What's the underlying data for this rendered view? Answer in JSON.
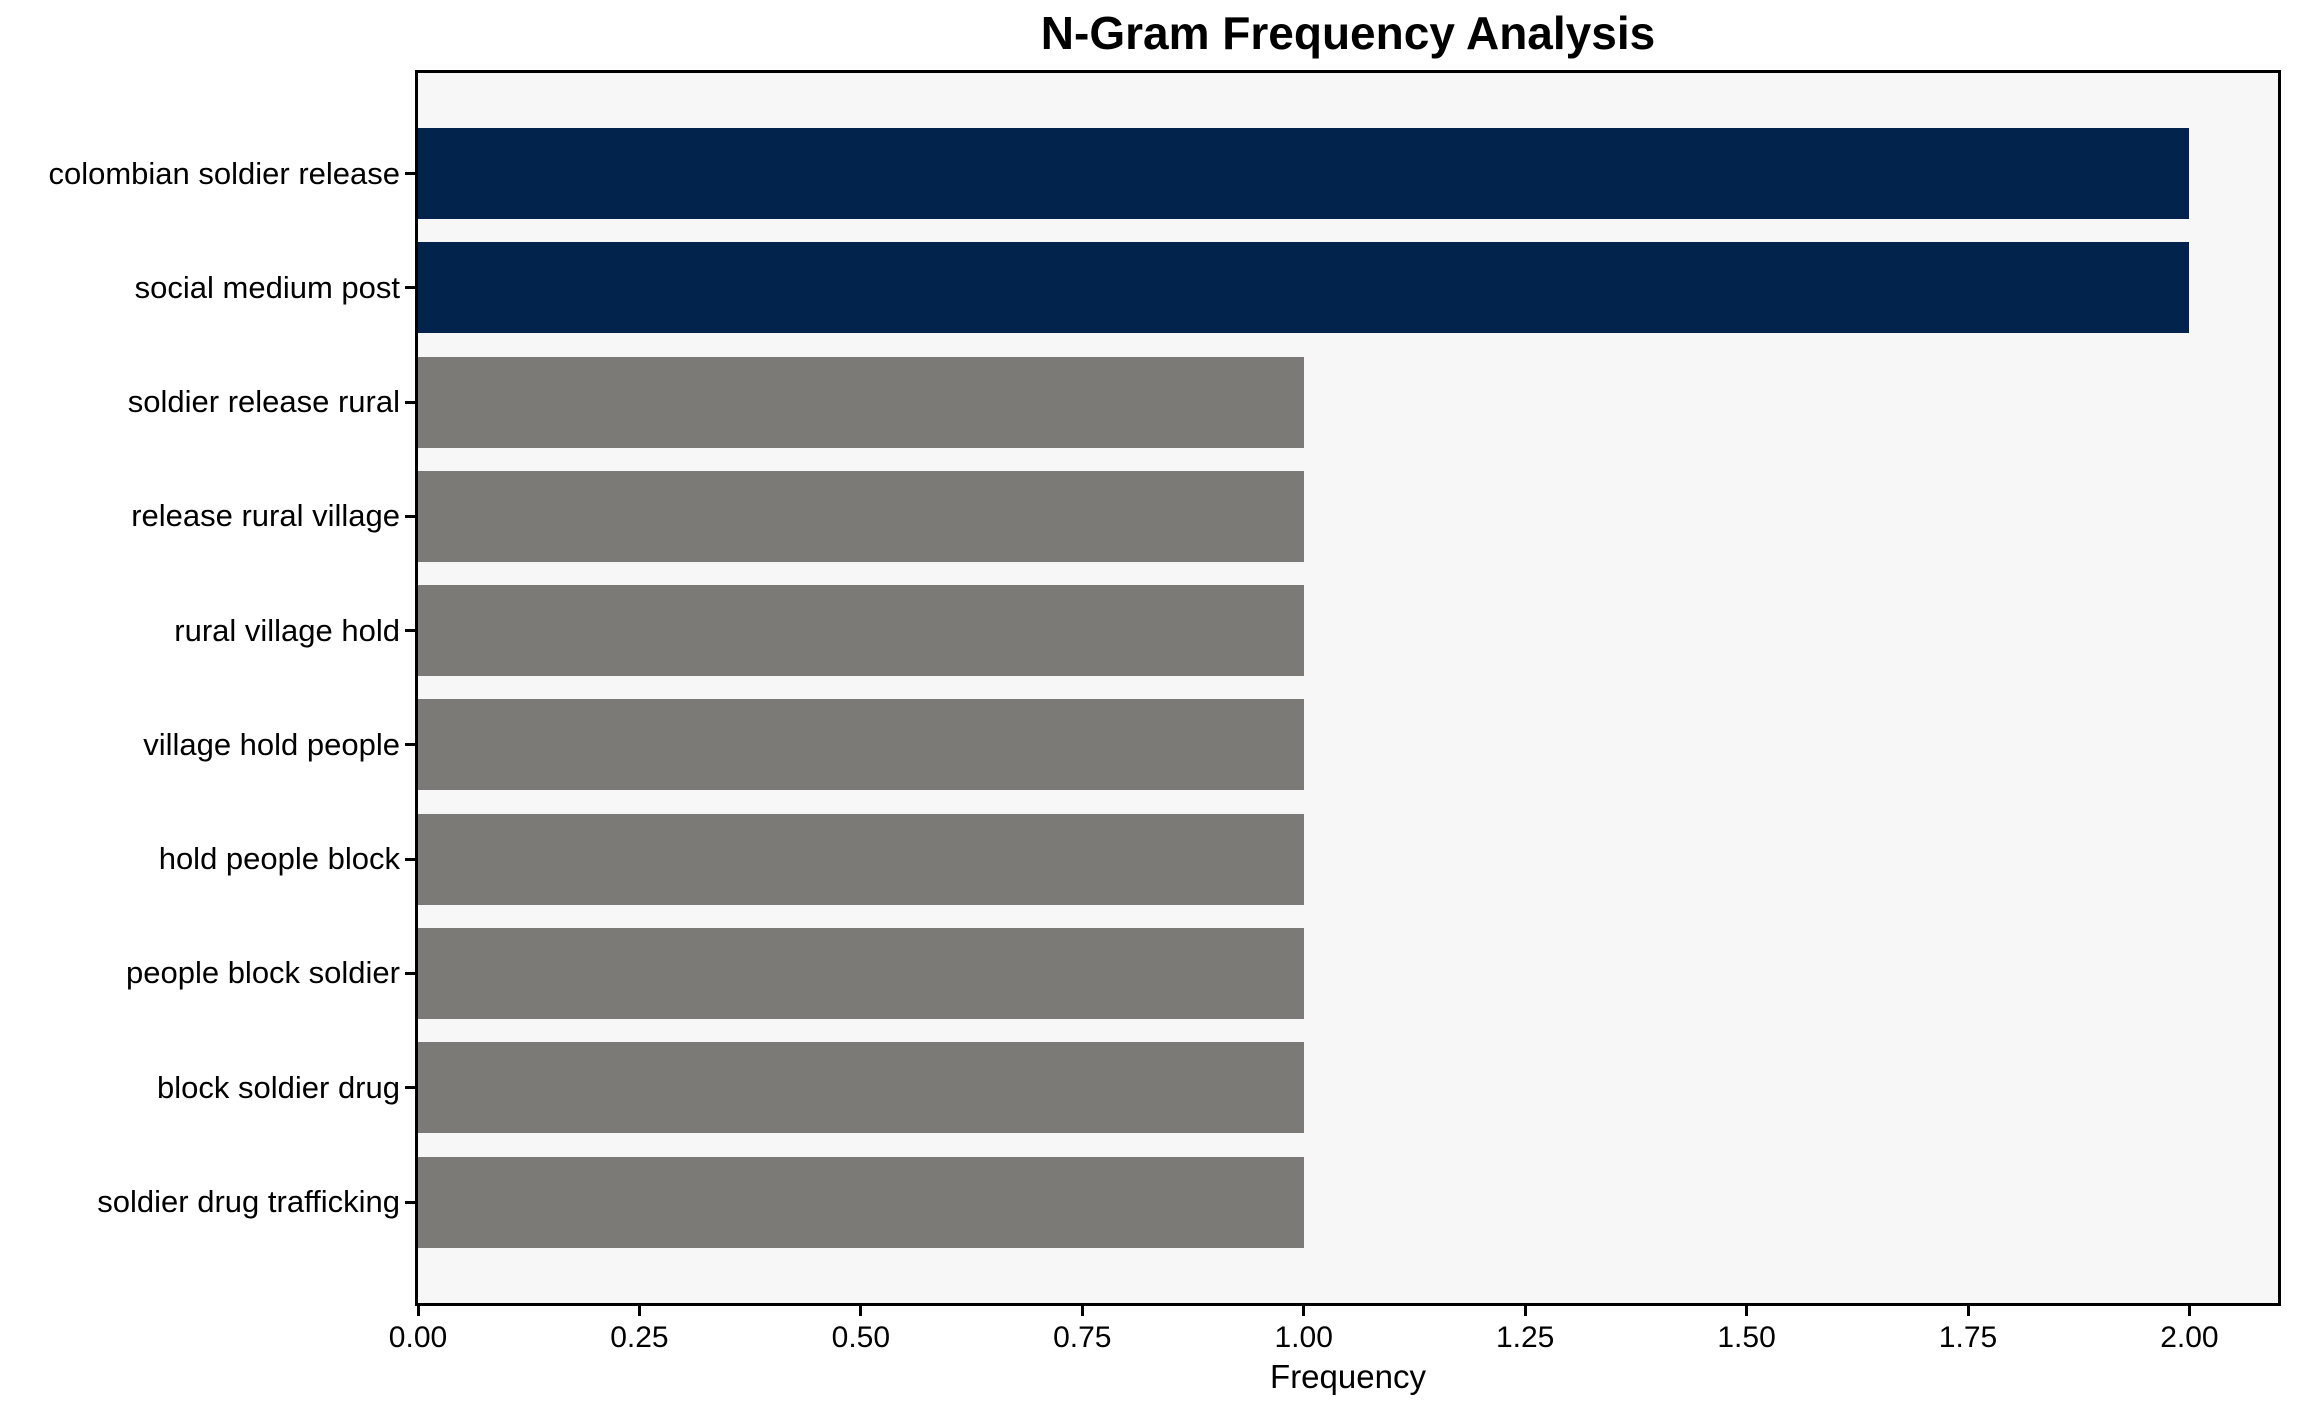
{
  "title": "N-Gram Frequency Analysis",
  "xlabel": "Frequency",
  "chart_data": {
    "type": "bar",
    "orientation": "horizontal",
    "title": "N-Gram Frequency Analysis",
    "xlabel": "Frequency",
    "ylabel": "",
    "categories": [
      "colombian soldier release",
      "social medium post",
      "soldier release rural",
      "release rural village",
      "rural village hold",
      "village hold people",
      "hold people block",
      "people block soldier",
      "block soldier drug",
      "soldier drug trafficking"
    ],
    "values": [
      2,
      2,
      1,
      1,
      1,
      1,
      1,
      1,
      1,
      1
    ],
    "xlim": [
      0,
      2.1
    ],
    "xticks": [
      "0.00",
      "0.25",
      "0.50",
      "0.75",
      "1.00",
      "1.25",
      "1.50",
      "1.75",
      "2.00"
    ],
    "xtick_values": [
      0,
      0.25,
      0.5,
      0.75,
      1.0,
      1.25,
      1.5,
      1.75,
      2.0
    ],
    "grid": "off",
    "legend": "none",
    "colors": {
      "highlight_bar": "#02234C",
      "default_bar": "#7B7A76",
      "plot_background": "#F7F7F7",
      "figure_background": "#FFFFFF",
      "spine": "#000000",
      "text": "#000000"
    },
    "bar_colors": [
      "#02234C",
      "#02234C",
      "#7B7A76",
      "#7B7A76",
      "#7B7A76",
      "#7B7A76",
      "#7B7A76",
      "#7B7A76",
      "#7B7A76",
      "#7B7A76"
    ]
  }
}
